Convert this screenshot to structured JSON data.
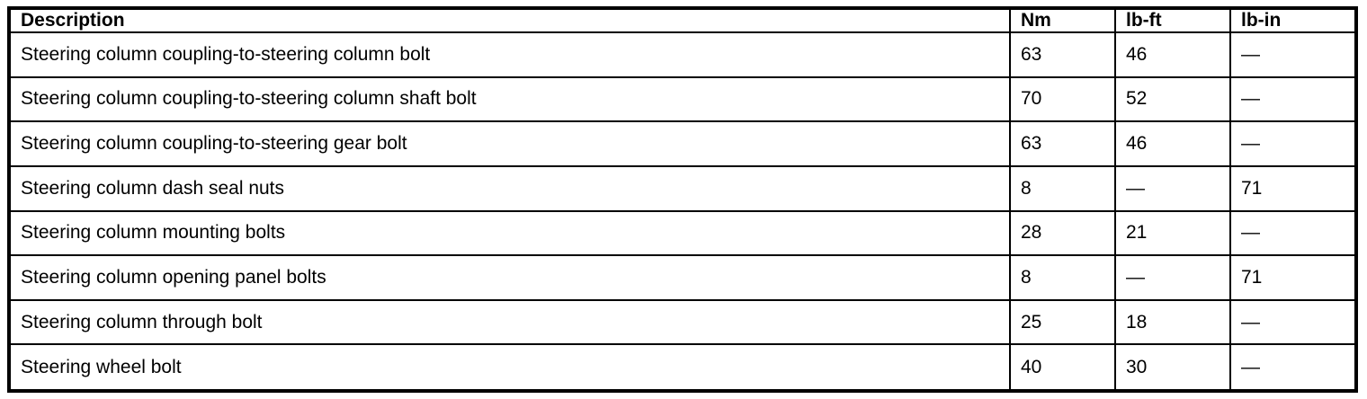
{
  "table": {
    "headers": {
      "description": "Description",
      "nm": "Nm",
      "lb_ft": "lb-ft",
      "lb_in": "lb-in"
    },
    "rows": [
      {
        "description": "Steering column coupling-to-steering column bolt",
        "nm": "63",
        "lb_ft": "46",
        "lb_in": "—"
      },
      {
        "description": "Steering column coupling-to-steering column shaft bolt",
        "nm": "70",
        "lb_ft": "52",
        "lb_in": "—"
      },
      {
        "description": "Steering column coupling-to-steering gear bolt",
        "nm": "63",
        "lb_ft": "46",
        "lb_in": "—"
      },
      {
        "description": "Steering column dash seal nuts",
        "nm": "8",
        "lb_ft": "—",
        "lb_in": "71"
      },
      {
        "description": "Steering column mounting bolts",
        "nm": "28",
        "lb_ft": "21",
        "lb_in": "—"
      },
      {
        "description": "Steering column opening panel bolts",
        "nm": "8",
        "lb_ft": "—",
        "lb_in": "71"
      },
      {
        "description": "Steering column through bolt",
        "nm": "25",
        "lb_ft": "18",
        "lb_in": "—"
      },
      {
        "description": "Steering wheel bolt",
        "nm": "40",
        "lb_ft": "30",
        "lb_in": "—"
      }
    ]
  },
  "colors": {
    "border": "#000000",
    "text": "#000000",
    "background": "#ffffff"
  }
}
